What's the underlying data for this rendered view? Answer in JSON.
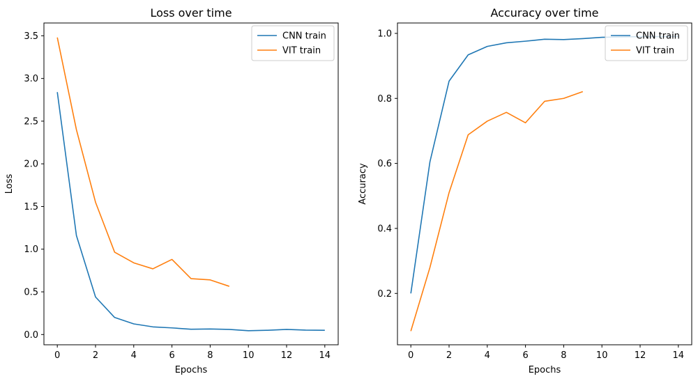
{
  "chart_data": [
    {
      "type": "line",
      "title": "Loss over time",
      "xlabel": "Epochs",
      "ylabel": "Loss",
      "xlim": [
        -0.7,
        14.7
      ],
      "ylim": [
        -0.12,
        3.65
      ],
      "xticks": [
        0,
        2,
        4,
        6,
        8,
        10,
        12,
        14
      ],
      "xtick_labels": [
        "0",
        "2",
        "4",
        "6",
        "8",
        "10",
        "12",
        "14"
      ],
      "yticks": [
        0.0,
        0.5,
        1.0,
        1.5,
        2.0,
        2.5,
        3.0,
        3.5
      ],
      "ytick_labels": [
        "0.0",
        "0.5",
        "1.0",
        "1.5",
        "2.0",
        "2.5",
        "3.0",
        "3.5"
      ],
      "grid": false,
      "legend_position": "top-right",
      "series": [
        {
          "name": "CNN train",
          "color": "#1f77b4",
          "x": [
            0,
            1,
            2,
            3,
            4,
            5,
            6,
            7,
            8,
            9,
            10,
            11,
            12,
            13,
            14
          ],
          "values": [
            2.84,
            1.16,
            0.44,
            0.2,
            0.125,
            0.09,
            0.078,
            0.062,
            0.065,
            0.06,
            0.045,
            0.05,
            0.06,
            0.052,
            0.05
          ]
        },
        {
          "name": "VIT train",
          "color": "#ff7f0e",
          "x": [
            0,
            1,
            2,
            3,
            4,
            5,
            6,
            7,
            8,
            9
          ],
          "values": [
            3.48,
            2.4,
            1.55,
            0.965,
            0.84,
            0.77,
            0.88,
            0.655,
            0.64,
            0.565
          ]
        }
      ]
    },
    {
      "type": "line",
      "title": "Accuracy over time",
      "xlabel": "Epochs",
      "ylabel": "Accuracy",
      "xlim": [
        -0.7,
        14.7
      ],
      "ylim": [
        0.042,
        1.032
      ],
      "xticks": [
        0,
        2,
        4,
        6,
        8,
        10,
        12,
        14
      ],
      "xtick_labels": [
        "0",
        "2",
        "4",
        "6",
        "8",
        "10",
        "12",
        "14"
      ],
      "yticks": [
        0.2,
        0.4,
        0.6,
        0.8,
        1.0
      ],
      "ytick_labels": [
        "0.2",
        "0.4",
        "0.6",
        "0.8",
        "1.0"
      ],
      "grid": false,
      "legend_position": "top-right",
      "series": [
        {
          "name": "CNN train",
          "color": "#1f77b4",
          "x": [
            0,
            1,
            2,
            3,
            4,
            5,
            6,
            7,
            8,
            9,
            10,
            11,
            12,
            13,
            14
          ],
          "values": [
            0.2,
            0.605,
            0.853,
            0.934,
            0.96,
            0.971,
            0.976,
            0.982,
            0.981,
            0.984,
            0.988,
            0.989,
            0.99,
            0.99,
            0.991
          ]
        },
        {
          "name": "VIT train",
          "color": "#ff7f0e",
          "x": [
            0,
            1,
            2,
            3,
            4,
            5,
            6,
            7,
            8,
            9
          ],
          "values": [
            0.084,
            0.28,
            0.51,
            0.688,
            0.73,
            0.757,
            0.725,
            0.791,
            0.8,
            0.821
          ]
        }
      ]
    }
  ]
}
